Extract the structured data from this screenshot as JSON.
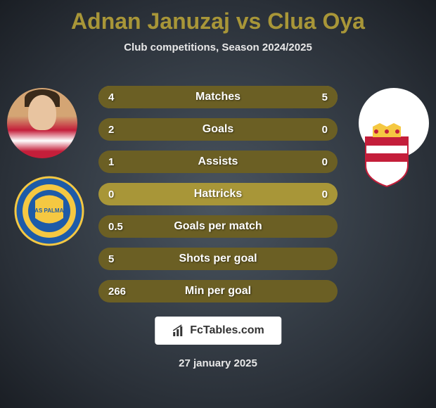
{
  "title": "Adnan Januzaj vs Clua Oya",
  "subtitle": "Club competitions, Season 2024/2025",
  "footer_brand": "FcTables.com",
  "footer_date": "27 january 2025",
  "colors": {
    "accent": "#a89638",
    "fill_dark": "#6b5f24",
    "bg_center": "#4a5560",
    "bg_outer": "#1a1e24",
    "text_light": "#e8e8e8",
    "white": "#ffffff"
  },
  "stats": [
    {
      "label": "Matches",
      "left_value": "4",
      "right_value": "5",
      "left_pct": 44,
      "right_pct": 56
    },
    {
      "label": "Goals",
      "left_value": "2",
      "right_value": "0",
      "left_pct": 100,
      "right_pct": 0
    },
    {
      "label": "Assists",
      "left_value": "1",
      "right_value": "0",
      "left_pct": 100,
      "right_pct": 0
    },
    {
      "label": "Hattricks",
      "left_value": "0",
      "right_value": "0",
      "left_pct": 0,
      "right_pct": 0
    },
    {
      "label": "Goals per match",
      "left_value": "0.5",
      "right_value": "",
      "left_pct": 100,
      "right_pct": 0
    },
    {
      "label": "Shots per goal",
      "left_value": "5",
      "right_value": "",
      "left_pct": 100,
      "right_pct": 0
    },
    {
      "label": "Min per goal",
      "left_value": "266",
      "right_value": "",
      "left_pct": 100,
      "right_pct": 0
    }
  ],
  "player_left": {
    "name": "Adnan Januzaj",
    "club": "Las Palmas"
  },
  "player_right": {
    "name": "Clua Oya",
    "club": "Girona"
  }
}
